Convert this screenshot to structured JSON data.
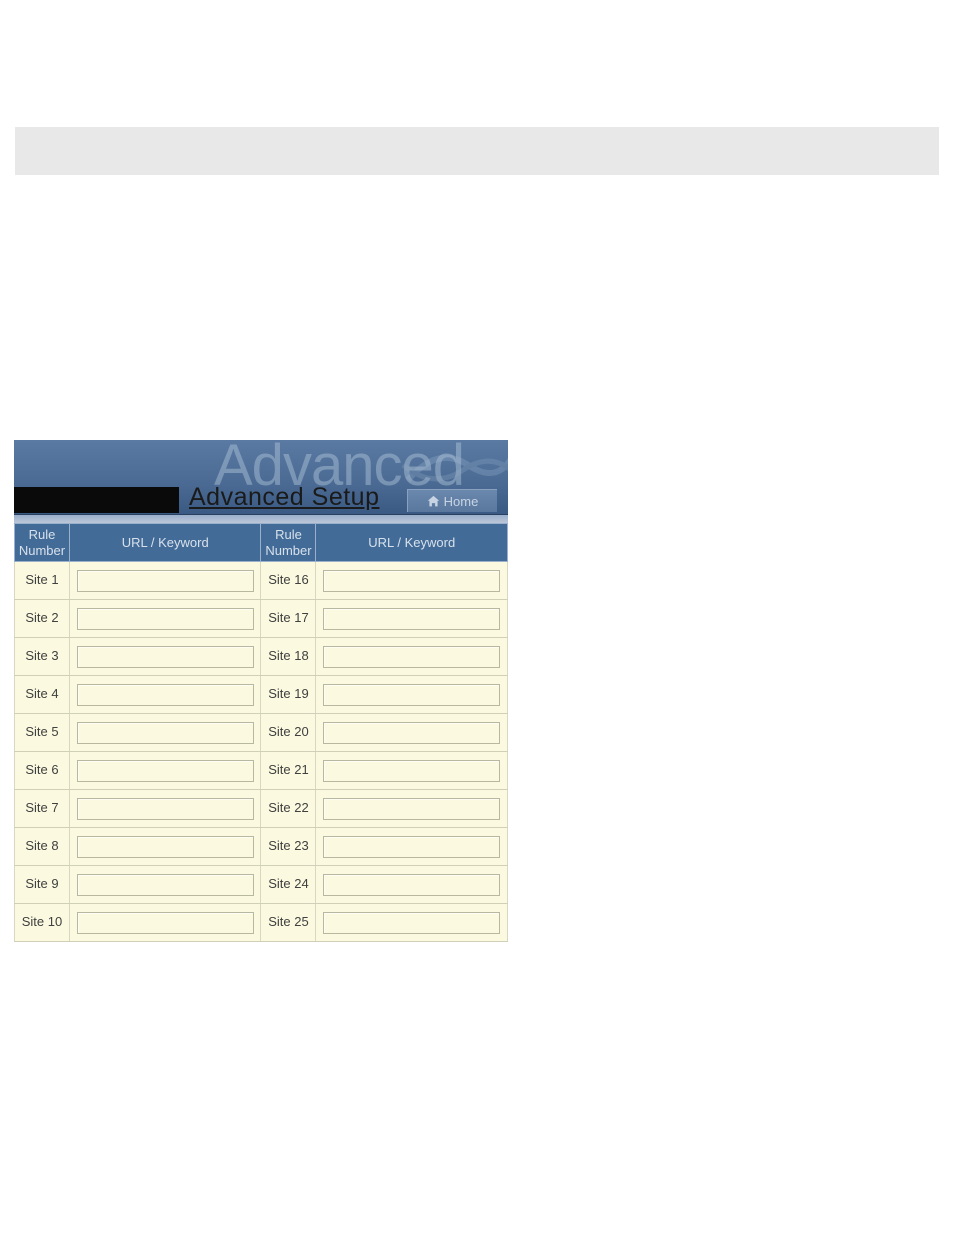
{
  "colors": {
    "banner_bg_top": "#5a7aa3",
    "banner_bg_bottom": "#3a5a83",
    "header_cell_bg": "#426c97",
    "header_cell_text": "#d8e0ec",
    "body_cell_bg": "#fbfae0",
    "body_cell_text": "#404040",
    "gray_bar": "#e8e8e8",
    "ghost_text": "rgba(180,200,220,0.45)",
    "home_tab_text": "#c8d4e4"
  },
  "banner": {
    "ghost_text": "Advanced",
    "title": "Advanced Setup",
    "home_label": "Home"
  },
  "table": {
    "headers": {
      "rule_num": "Rule Number",
      "url_kw": "URL / Keyword"
    },
    "rows_left": [
      {
        "label": "Site  1",
        "value": ""
      },
      {
        "label": "Site  2",
        "value": ""
      },
      {
        "label": "Site  3",
        "value": ""
      },
      {
        "label": "Site  4",
        "value": ""
      },
      {
        "label": "Site  5",
        "value": ""
      },
      {
        "label": "Site  6",
        "value": ""
      },
      {
        "label": "Site  7",
        "value": ""
      },
      {
        "label": "Site  8",
        "value": ""
      },
      {
        "label": "Site  9",
        "value": ""
      },
      {
        "label": "Site 10",
        "value": ""
      }
    ],
    "rows_right": [
      {
        "label": "Site 16",
        "value": ""
      },
      {
        "label": "Site 17",
        "value": ""
      },
      {
        "label": "Site 18",
        "value": ""
      },
      {
        "label": "Site 19",
        "value": ""
      },
      {
        "label": "Site 20",
        "value": ""
      },
      {
        "label": "Site 21",
        "value": ""
      },
      {
        "label": "Site 22",
        "value": ""
      },
      {
        "label": "Site 23",
        "value": ""
      },
      {
        "label": "Site 24",
        "value": ""
      },
      {
        "label": "Site 25",
        "value": ""
      }
    ]
  }
}
